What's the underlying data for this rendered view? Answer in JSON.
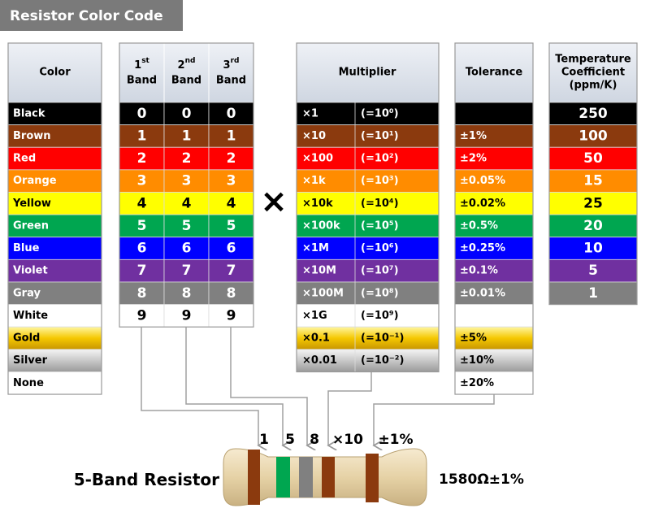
{
  "title": "Resistor Color Code",
  "operator": "×",
  "color_table": {
    "header": "Color",
    "rows": [
      "Black",
      "Brown",
      "Red",
      "Orange",
      "Yellow",
      "Green",
      "Blue",
      "Violet",
      "Gray",
      "White",
      "Gold",
      "Silver",
      "None"
    ]
  },
  "band_table": {
    "headers": [
      {
        "ordinal": "1",
        "suffix": "st",
        "label": "Band"
      },
      {
        "ordinal": "2",
        "suffix": "nd",
        "label": "Band"
      },
      {
        "ordinal": "3",
        "suffix": "rd",
        "label": "Band"
      }
    ],
    "rows": [
      [
        0,
        0,
        0
      ],
      [
        1,
        1,
        1
      ],
      [
        2,
        2,
        2
      ],
      [
        3,
        3,
        3
      ],
      [
        4,
        4,
        4
      ],
      [
        5,
        5,
        5
      ],
      [
        6,
        6,
        6
      ],
      [
        7,
        7,
        7
      ],
      [
        8,
        8,
        8
      ],
      [
        9,
        9,
        9
      ]
    ]
  },
  "multiplier_table": {
    "header": "Multiplier",
    "rows": [
      {
        "factor": "×1",
        "power": "(=10⁰)"
      },
      {
        "factor": "×10",
        "power": "(=10¹)"
      },
      {
        "factor": "×100",
        "power": "(=10²)"
      },
      {
        "factor": "×1k",
        "power": "(=10³)"
      },
      {
        "factor": "×10k",
        "power": "(=10⁴)"
      },
      {
        "factor": "×100k",
        "power": "(=10⁵)"
      },
      {
        "factor": "×1M",
        "power": "(=10⁶)"
      },
      {
        "factor": "×10M",
        "power": "(=10⁷)"
      },
      {
        "factor": "×100M",
        "power": "(=10⁸)"
      },
      {
        "factor": "×1G",
        "power": "(=10⁹)"
      },
      {
        "factor": "×0.1",
        "power": "(=10⁻¹)"
      },
      {
        "factor": "×0.01",
        "power": "(=10⁻²)"
      }
    ]
  },
  "tolerance_table": {
    "header": "Tolerance",
    "rows": [
      null,
      "±1%",
      "±2%",
      "±0.05%",
      "±0.02%",
      "±0.5%",
      "±0.25%",
      "±0.1%",
      "±0.01%",
      null,
      "±5%",
      "±10%",
      "±20%"
    ]
  },
  "temperature_table": {
    "header_lines": [
      "Temperature",
      "Coefficient",
      "(ppm/K)"
    ],
    "rows": [
      250,
      100,
      50,
      15,
      25,
      20,
      10,
      5,
      1
    ]
  },
  "resistor": {
    "label": "5-Band Resistor",
    "band_labels": [
      "1",
      "5",
      "8",
      "×10",
      "±1%"
    ],
    "value": "1580Ω±1%"
  }
}
